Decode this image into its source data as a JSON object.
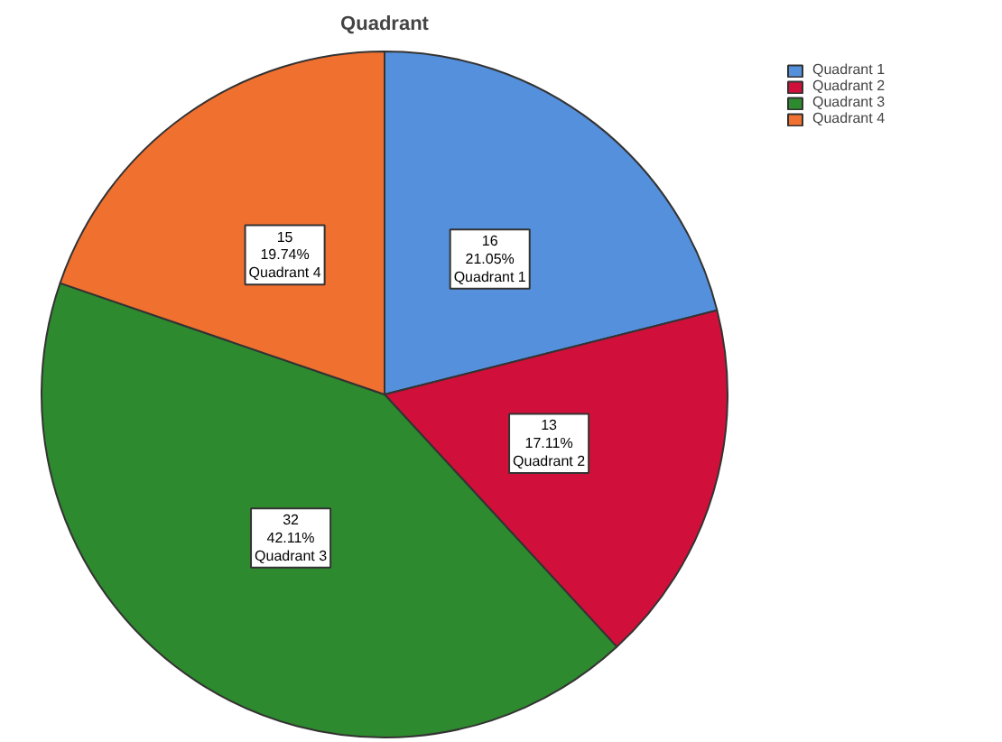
{
  "chart_data": {
    "type": "pie",
    "title": "Quadrant",
    "categories": [
      "Quadrant 1",
      "Quadrant 2",
      "Quadrant 3",
      "Quadrant 4"
    ],
    "values": [
      16,
      13,
      32,
      15
    ],
    "colors": [
      "#5590dc",
      "#d0103a",
      "#2e8a2e",
      "#f07030"
    ],
    "value_labels": [
      "16\n21.05%",
      "13\n17.11%",
      "32\n42.11%",
      "15\n19.74%"
    ],
    "legend": "top right"
  }
}
